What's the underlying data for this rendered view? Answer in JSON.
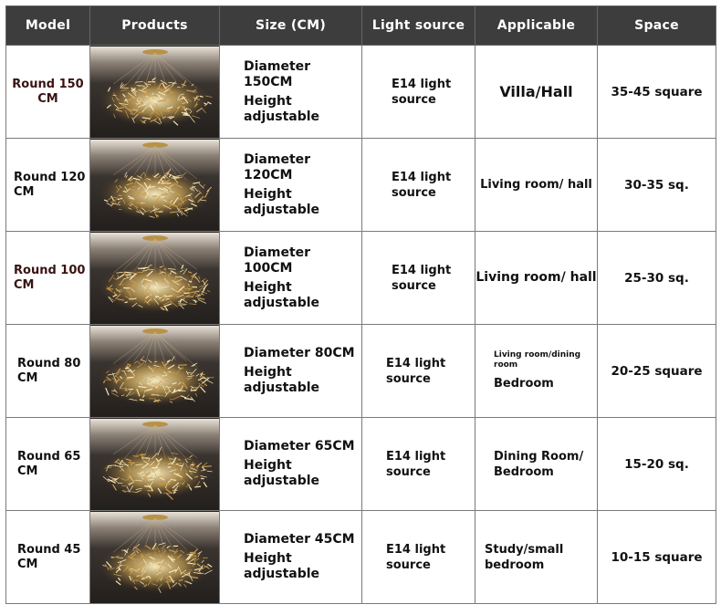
{
  "headers": [
    "Model",
    "Products",
    "Size (CM)",
    "Light source",
    "Applicable",
    "Space"
  ],
  "rows": [
    {
      "model": "Round 150 CM",
      "size_diameter": "Diameter 150CM",
      "size_height": "Height adjustable",
      "light": "E14 light source",
      "applicable": "Villa/Hall",
      "space": "35-45 square"
    },
    {
      "model": "Round 120 CM",
      "size_diameter": "Diameter 120CM",
      "size_height": "Height adjustable",
      "light": "E14 light source",
      "applicable": "Living room/ hall",
      "space": "30-35 sq."
    },
    {
      "model": "Round 100 CM",
      "size_diameter": "Diameter 100CM",
      "size_height": "Height adjustable",
      "light": "E14 light source",
      "applicable": "Living room/ hall",
      "space": "25-30 sq."
    },
    {
      "model": "Round 80 CM",
      "size_diameter": "Diameter 80CM",
      "size_height": "Height adjustable",
      "light": "E14 light source",
      "applicable_small": "Living room/dining room",
      "applicable": "Bedroom",
      "space": "20-25 square"
    },
    {
      "model": "Round 65 CM",
      "size_diameter": "Diameter 65CM",
      "size_height": "Height adjustable",
      "light": "E14 light source",
      "applicable": "Dining Room/ Bedroom",
      "space": "15-20 sq."
    },
    {
      "model": "Round 45 CM",
      "size_diameter": "Diameter 45CM",
      "size_height": "Height adjustable",
      "light": "E14 light source",
      "applicable": "Study/small bedroom",
      "space": "10-15 square"
    }
  ]
}
